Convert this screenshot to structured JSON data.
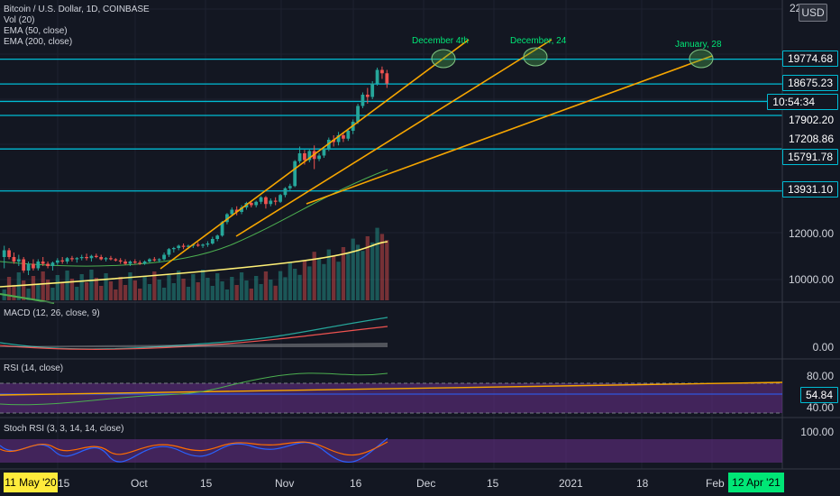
{
  "header": {
    "symbol_line": "Bitcoin / U.S. Dollar, 1D, COINBASE",
    "indicators": [
      "Vol (20)",
      "EMA (50, close)",
      "EMA (200, close)"
    ],
    "currency": "USD",
    "top_tick": "22"
  },
  "annotations": [
    {
      "text": "December 4th"
    },
    {
      "text": "December, 24"
    },
    {
      "text": "January, 28"
    }
  ],
  "price_axis": {
    "ticks": [
      "12000.00",
      "10000.00"
    ],
    "labels": [
      {
        "text": "19774.68",
        "style": "line"
      },
      {
        "text": "18675.23",
        "style": "line"
      },
      {
        "text": "10:54:34",
        "style": "line"
      },
      {
        "text": "17902.20",
        "style": "plain"
      },
      {
        "text": "17208.86",
        "style": "plain"
      },
      {
        "text": "15791.78",
        "style": "line"
      },
      {
        "text": "13931.10",
        "style": "line"
      }
    ]
  },
  "panels": {
    "macd": {
      "title": "MACD (12, 26, close, 9)",
      "tick": "0.00"
    },
    "rsi": {
      "title": "RSI (14, close)",
      "ticks": [
        "80.00",
        "40.00"
      ],
      "value": "54.84"
    },
    "stoch": {
      "title": "Stoch RSI (3, 3, 14, 14, close)",
      "tick": "100.00"
    }
  },
  "time_axis": {
    "left_badge": "11 May '20",
    "right_badge": "12 Apr '21",
    "ticks": [
      "15",
      "Oct",
      "15",
      "Nov",
      "16",
      "Dec",
      "15",
      "2021",
      "18",
      "Feb"
    ]
  },
  "chart_data": {
    "type": "candlestick",
    "title": "Bitcoin / U.S. Dollar, 1D, COINBASE",
    "horizontal_levels": [
      19774.68,
      18675.23,
      17902.2,
      15791.78,
      13931.1
    ],
    "price_range": [
      9200,
      22000
    ],
    "candles": [
      [
        11000,
        11500,
        10500,
        11300
      ],
      [
        11300,
        11400,
        10900,
        11000
      ],
      [
        11000,
        11200,
        10700,
        10800
      ],
      [
        10800,
        11100,
        10600,
        10900
      ],
      [
        10900,
        11000,
        10300,
        10400
      ],
      [
        10400,
        10800,
        10200,
        10700
      ],
      [
        10700,
        10900,
        10400,
        10500
      ],
      [
        10500,
        10900,
        10400,
        10800
      ],
      [
        10800,
        11000,
        10600,
        10700
      ],
      [
        10700,
        10800,
        10500,
        10600
      ],
      [
        10600,
        10800,
        10400,
        10750
      ],
      [
        10750,
        10950,
        10650,
        10850
      ],
      [
        10850,
        11000,
        10700,
        10800
      ],
      [
        10800,
        11000,
        10700,
        10950
      ],
      [
        10950,
        11050,
        10800,
        10900
      ],
      [
        10900,
        11000,
        10750,
        10950
      ],
      [
        10950,
        11100,
        10850,
        11000
      ],
      [
        11000,
        11150,
        10850,
        10950
      ],
      [
        10950,
        11100,
        10800,
        11050
      ],
      [
        11050,
        11150,
        10950,
        11000
      ],
      [
        11000,
        11100,
        10850,
        10900
      ],
      [
        10900,
        11000,
        10800,
        10950
      ],
      [
        10950,
        11050,
        10850,
        10900
      ],
      [
        10900,
        10950,
        10800,
        10850
      ],
      [
        10850,
        10950,
        10700,
        10800
      ],
      [
        10800,
        10900,
        10650,
        10700
      ],
      [
        10700,
        10850,
        10600,
        10800
      ],
      [
        10800,
        10900,
        10700,
        10750
      ],
      [
        10750,
        10850,
        10650,
        10700
      ],
      [
        10700,
        10850,
        10650,
        10800
      ],
      [
        10800,
        10950,
        10750,
        10900
      ],
      [
        10900,
        11000,
        10800,
        10850
      ],
      [
        10850,
        10950,
        10750,
        10900
      ],
      [
        10900,
        11200,
        10850,
        11100
      ],
      [
        11100,
        11400,
        11000,
        11350
      ],
      [
        11350,
        11450,
        11200,
        11400
      ],
      [
        11400,
        11550,
        11300,
        11500
      ],
      [
        11500,
        11600,
        11350,
        11450
      ],
      [
        11450,
        11550,
        11350,
        11500
      ],
      [
        11500,
        11600,
        11400,
        11550
      ],
      [
        11550,
        11650,
        11450,
        11500
      ],
      [
        11500,
        11600,
        11400,
        11550
      ],
      [
        11550,
        11700,
        11450,
        11600
      ],
      [
        11600,
        11900,
        11550,
        11800
      ],
      [
        11800,
        12000,
        11700,
        11950
      ],
      [
        11950,
        12600,
        11900,
        12550
      ],
      [
        12550,
        12950,
        12450,
        12900
      ],
      [
        12900,
        13200,
        12800,
        13100
      ],
      [
        13100,
        13250,
        12850,
        13000
      ],
      [
        13000,
        13300,
        12900,
        13200
      ],
      [
        13200,
        13450,
        13100,
        13400
      ],
      [
        13400,
        13500,
        13200,
        13300
      ],
      [
        13300,
        13500,
        13200,
        13450
      ],
      [
        13450,
        13700,
        13350,
        13650
      ],
      [
        13650,
        13700,
        13150,
        13350
      ],
      [
        13350,
        13600,
        13250,
        13500
      ],
      [
        13500,
        13650,
        13300,
        13450
      ],
      [
        13450,
        13800,
        13400,
        13750
      ],
      [
        13750,
        14100,
        13650,
        14050
      ],
      [
        14050,
        14250,
        13950,
        14150
      ],
      [
        14150,
        15300,
        14100,
        15250
      ],
      [
        15250,
        15900,
        15150,
        15600
      ],
      [
        15600,
        15750,
        15100,
        15300
      ],
      [
        15300,
        15800,
        15200,
        15700
      ],
      [
        15700,
        15950,
        14900,
        15350
      ],
      [
        15350,
        15600,
        15250,
        15500
      ],
      [
        15500,
        15900,
        15400,
        15800
      ],
      [
        15800,
        16300,
        15700,
        16200
      ],
      [
        16200,
        16400,
        15900,
        16100
      ],
      [
        16100,
        16550,
        15950,
        16400
      ],
      [
        16400,
        16550,
        16100,
        16250
      ],
      [
        16250,
        16700,
        16150,
        16600
      ],
      [
        16600,
        17100,
        16450,
        17000
      ],
      [
        17000,
        17800,
        16900,
        17700
      ],
      [
        17700,
        18300,
        17600,
        18200
      ],
      [
        18200,
        18500,
        17800,
        18100
      ],
      [
        18100,
        18800,
        18000,
        18700
      ],
      [
        18700,
        19400,
        18600,
        19300
      ],
      [
        19300,
        19450,
        18900,
        19150
      ],
      [
        19150,
        19300,
        18500,
        18700
      ]
    ],
    "trendlines": [
      {
        "label": "December 4th",
        "color": "#f7a600"
      },
      {
        "label": "December, 24",
        "color": "#f7a600"
      },
      {
        "label": "January, 28",
        "color": "#f7a600"
      }
    ],
    "series": [
      {
        "name": "EMA (50, close)"
      },
      {
        "name": "EMA (200, close)"
      },
      {
        "name": "Vol (20)"
      },
      {
        "name": "MACD (12, 26, close, 9)"
      },
      {
        "name": "RSI (14, close)",
        "last": 54.84
      },
      {
        "name": "Stoch RSI (3, 3, 14, 14, close)"
      }
    ],
    "colors": {
      "up": "#26a69a",
      "down": "#ef5350",
      "cyan": "#00bcd4",
      "orange": "#f7a600",
      "green_text": "#00e676",
      "purple": "#6a2f8a"
    }
  }
}
